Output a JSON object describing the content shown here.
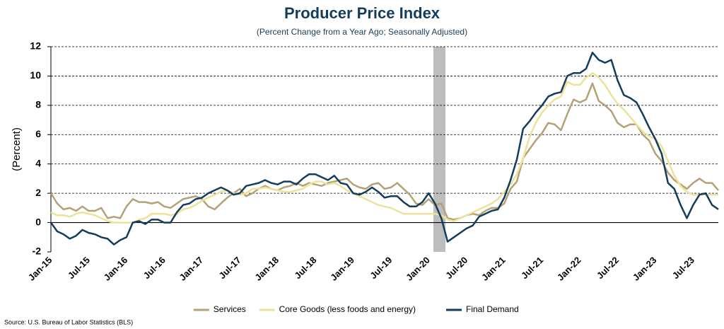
{
  "chart_data": {
    "type": "line",
    "title": "Producer Price Index",
    "subtitle": "(Percent Change from a Year Ago; Seasonally Adjusted)",
    "y_label": "(Percent)",
    "source": "Source: U.S. Bureau of Labor Statistics (BLS)",
    "categories": [
      "Jan-15",
      null,
      null,
      null,
      null,
      null,
      "Jul-15",
      null,
      null,
      null,
      null,
      null,
      "Jan-16",
      null,
      null,
      null,
      null,
      null,
      "Jul-16",
      null,
      null,
      null,
      null,
      null,
      "Jan-17",
      null,
      null,
      null,
      null,
      null,
      "Jul-17",
      null,
      null,
      null,
      null,
      null,
      "Jan-18",
      null,
      null,
      null,
      null,
      null,
      "Jul-18",
      null,
      null,
      null,
      null,
      null,
      "Jan-19",
      null,
      null,
      null,
      null,
      null,
      "Jul-19",
      null,
      null,
      null,
      null,
      null,
      "Jan-20",
      null,
      null,
      null,
      null,
      null,
      "Jul-20",
      null,
      null,
      null,
      null,
      null,
      "Jan-21",
      null,
      null,
      null,
      null,
      null,
      "Jul-21",
      null,
      null,
      null,
      null,
      null,
      "Jan-22",
      null,
      null,
      null,
      null,
      null,
      "Jul-22",
      null,
      null,
      null,
      null,
      null,
      "Jan-23",
      null,
      null,
      null,
      null,
      null,
      "Jul-23",
      null,
      null,
      null,
      null
    ],
    "series": [
      {
        "name": "Services",
        "color": "#b4a276",
        "values": [
          2.0,
          1.3,
          0.9,
          1.0,
          0.8,
          1.1,
          0.8,
          0.8,
          1.0,
          0.3,
          0.4,
          0.3,
          1.1,
          1.6,
          1.4,
          1.4,
          1.3,
          1.4,
          1.1,
          1.0,
          1.3,
          1.6,
          1.7,
          1.8,
          1.6,
          1.1,
          0.9,
          1.3,
          1.7,
          2.0,
          2.3,
          1.8,
          2.0,
          2.3,
          2.5,
          2.3,
          2.2,
          2.4,
          2.5,
          2.7,
          2.5,
          2.7,
          2.6,
          2.5,
          2.7,
          2.8,
          2.9,
          3.0,
          2.6,
          2.4,
          2.3,
          2.6,
          2.7,
          2.3,
          2.4,
          2.7,
          2.3,
          1.9,
          1.3,
          1.2,
          1.6,
          1.2,
          1.3,
          0.3,
          0.2,
          0.3,
          0.5,
          0.6,
          0.5,
          0.8,
          1.0,
          1.0,
          1.3,
          2.3,
          2.8,
          4.4,
          5.0,
          5.6,
          6.1,
          6.8,
          6.7,
          6.3,
          7.4,
          8.4,
          8.2,
          8.4,
          9.5,
          8.3,
          8.0,
          7.6,
          6.8,
          6.5,
          6.7,
          6.7,
          6.0,
          5.6,
          4.7,
          4.2,
          3.4,
          2.9,
          2.6,
          2.3,
          2.7,
          3.0,
          2.7,
          2.7,
          2.2
        ]
      },
      {
        "name": "Core Goods (less foods and energy)",
        "color": "#ece39a",
        "values": [
          0.7,
          0.5,
          0.5,
          0.4,
          0.6,
          0.7,
          0.6,
          0.5,
          0.3,
          0.1,
          0,
          0,
          0,
          0,
          0.2,
          0.3,
          0.6,
          0.6,
          0.6,
          0.5,
          0.6,
          0.9,
          1.0,
          1.2,
          1.5,
          1.7,
          1.9,
          2.1,
          2.2,
          2.0,
          1.9,
          2.0,
          2.3,
          2.3,
          2.4,
          2.3,
          2.2,
          2.1,
          2.1,
          2.2,
          2.3,
          2.6,
          2.8,
          2.8,
          2.6,
          2.7,
          2.5,
          2.2,
          2.0,
          1.8,
          1.6,
          1.4,
          1.2,
          1.1,
          1.0,
          0.8,
          0.6,
          0.6,
          0.6,
          0.6,
          0.6,
          0.6,
          0.5,
          0.2,
          0.1,
          0.3,
          0.5,
          0.7,
          0.9,
          1.1,
          1.3,
          1.6,
          2.1,
          2.6,
          3.3,
          4.4,
          5.8,
          6.8,
          7.5,
          8.0,
          8.4,
          8.6,
          9.6,
          9.4,
          9.4,
          9.9,
          10.2,
          9.9,
          9.4,
          8.7,
          8.1,
          7.7,
          7.2,
          6.7,
          6.2,
          5.9,
          5.7,
          5.2,
          4.2,
          3.2,
          2.5,
          2.1,
          1.9,
          1.9,
          1.9,
          1.9,
          1.9
        ]
      },
      {
        "name": "Final Demand",
        "color": "#143d5c",
        "values": [
          0,
          -0.6,
          -0.8,
          -1.1,
          -0.9,
          -0.5,
          -0.7,
          -0.8,
          -1.0,
          -1.1,
          -1.5,
          -1.2,
          -1.0,
          0,
          0.1,
          -0.1,
          0.2,
          0.2,
          0,
          0,
          0.7,
          1.2,
          1.3,
          1.6,
          1.7,
          2.0,
          2.2,
          2.4,
          2.2,
          1.9,
          2.0,
          2.5,
          2.6,
          2.7,
          2.9,
          2.7,
          2.6,
          2.8,
          2.8,
          2.6,
          3.0,
          3.3,
          3.3,
          3.1,
          2.9,
          3.2,
          2.7,
          2.6,
          2.0,
          1.9,
          2.1,
          2.4,
          2.1,
          1.7,
          1.8,
          1.8,
          1.4,
          1.1,
          1.1,
          1.4,
          2.0,
          1.3,
          0.3,
          -1.3,
          -1.0,
          -0.7,
          -0.4,
          -0.2,
          0.4,
          0.6,
          0.8,
          0.9,
          1.7,
          2.9,
          4.3,
          6.4,
          6.9,
          7.5,
          8.0,
          8.6,
          8.8,
          8.9,
          10.0,
          10.2,
          10.2,
          10.5,
          11.6,
          11.1,
          10.9,
          11.1,
          9.7,
          8.7,
          8.5,
          8.2,
          7.4,
          6.5,
          5.7,
          4.7,
          2.7,
          2.3,
          1.2,
          0.3,
          1.2,
          1.9,
          2.0,
          1.2,
          0.9
        ]
      }
    ],
    "ylim": [
      -2,
      12
    ],
    "yticks": [
      -2,
      0,
      2,
      4,
      6,
      8,
      10,
      12
    ],
    "grid": true
  }
}
